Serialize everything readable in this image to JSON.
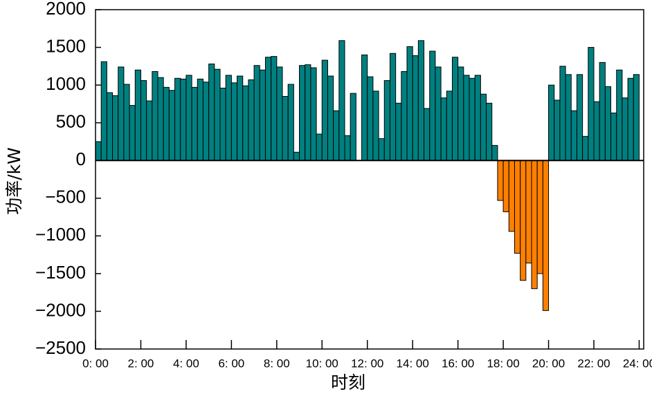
{
  "chart_data": {
    "type": "bar",
    "xlabel": "时刻",
    "ylabel": "功率/kW",
    "values": [
      250,
      1310,
      900,
      860,
      1240,
      1010,
      730,
      1200,
      1060,
      790,
      1180,
      1100,
      970,
      930,
      1090,
      1080,
      1130,
      970,
      1080,
      1040,
      1280,
      1210,
      960,
      1130,
      1030,
      1120,
      990,
      1070,
      1260,
      1200,
      1370,
      1380,
      1240,
      850,
      1010,
      110,
      1260,
      1270,
      1230,
      350,
      1330,
      1120,
      660,
      1590,
      330,
      890,
      0,
      1400,
      1110,
      920,
      290,
      1060,
      1420,
      760,
      1180,
      1510,
      1390,
      1590,
      690,
      1450,
      1240,
      830,
      920,
      1370,
      1240,
      1130,
      1090,
      1130,
      880,
      760,
      200,
      -530,
      -680,
      -940,
      -1230,
      -1590,
      -1360,
      -1700,
      -1500,
      -1990,
      1000,
      800,
      1250,
      1140,
      660,
      1140,
      320,
      1500,
      780,
      1300,
      980,
      630,
      1200,
      830,
      1090,
      1140
    ],
    "color": "#008080",
    "negative_color": "#ff8000",
    "xlim": [
      0,
      24.2
    ],
    "xticks": [
      {
        "value": 0,
        "label": "0: 00"
      },
      {
        "value": 2,
        "label": "2: 00"
      },
      {
        "value": 4,
        "label": "4: 00"
      },
      {
        "value": 6,
        "label": "6: 00"
      },
      {
        "value": 8,
        "label": "8: 00"
      },
      {
        "value": 10,
        "label": "10: 00"
      },
      {
        "value": 12,
        "label": "12: 00"
      },
      {
        "value": 14,
        "label": "14: 00"
      },
      {
        "value": 16,
        "label": "16: 00"
      },
      {
        "value": 18,
        "label": "18: 00"
      },
      {
        "value": 20,
        "label": "20: 00"
      },
      {
        "value": 22,
        "label": "22: 00"
      },
      {
        "value": 24,
        "label": "24: 00"
      }
    ],
    "ylim": [
      -2500,
      2000
    ],
    "yticks": [
      {
        "value": -2500,
        "label": "−2500"
      },
      {
        "value": -2000,
        "label": "−2000"
      },
      {
        "value": -1500,
        "label": "−1500"
      },
      {
        "value": -1000,
        "label": "−1000"
      },
      {
        "value": -500,
        "label": "−500"
      },
      0,
      500,
      1000,
      1500,
      2000
    ]
  }
}
